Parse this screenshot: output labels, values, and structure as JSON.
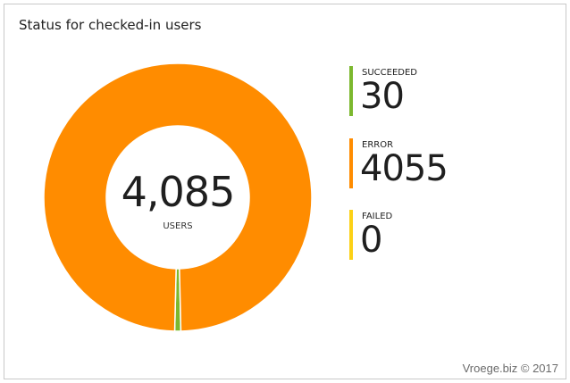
{
  "panel": {
    "title": "Status for checked-in users",
    "total": "4,085",
    "total_unit": "USERS"
  },
  "legend": [
    {
      "label": "SUCCEEDED",
      "value": "30",
      "color": "#7cb82f"
    },
    {
      "label": "ERROR",
      "value": "4055",
      "color": "#ff8c00"
    },
    {
      "label": "FAILED",
      "value": "0",
      "color": "#fcd116"
    }
  ],
  "watermark": "Vroege.biz © 2017",
  "chart_data": {
    "type": "pie",
    "categories": [
      "SUCCEEDED",
      "ERROR",
      "FAILED"
    ],
    "values": [
      30,
      4055,
      0
    ],
    "colors": [
      "#7cb82f",
      "#ff8c00",
      "#fcd116"
    ],
    "donut": true,
    "legend_placement": "right"
  }
}
